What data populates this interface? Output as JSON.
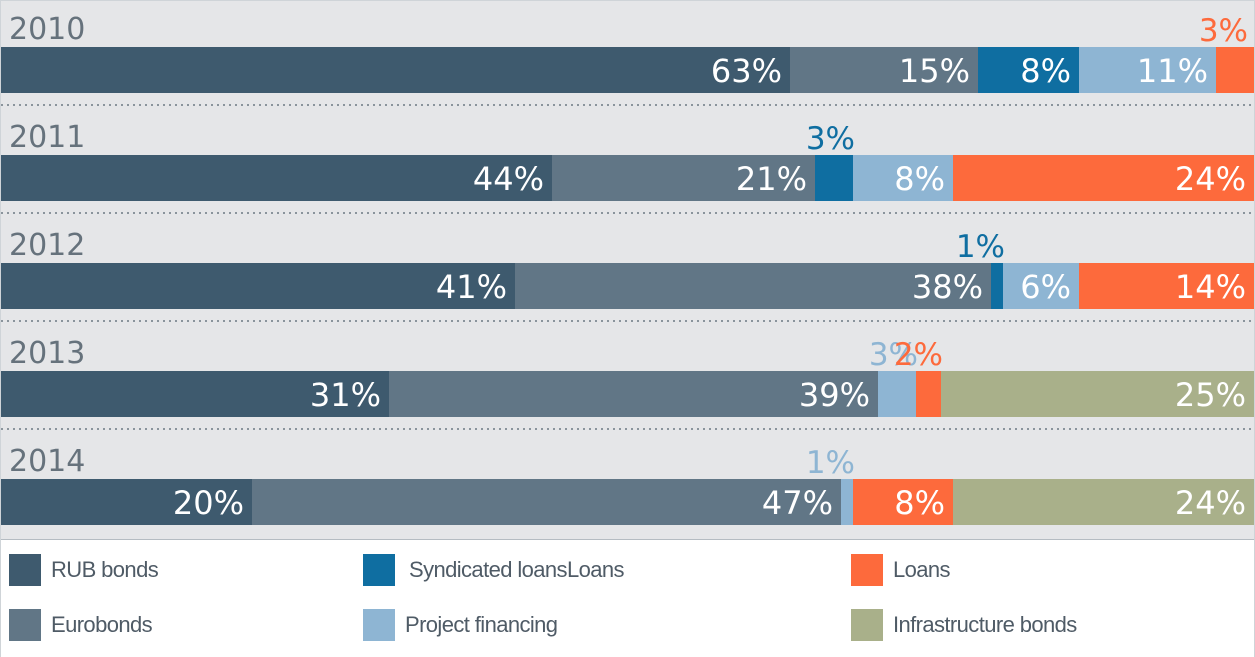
{
  "chart_data": {
    "type": "bar",
    "orientation": "horizontal",
    "stacked": true,
    "unit": "%",
    "categories": [
      "2010",
      "2011",
      "2012",
      "2013",
      "2014"
    ],
    "series": [
      {
        "name": "RUB bonds",
        "color": "#3e5a6e",
        "values": [
          63,
          44,
          41,
          31,
          20
        ]
      },
      {
        "name": "Eurobonds",
        "color": "#617686",
        "values": [
          15,
          21,
          38,
          39,
          47
        ]
      },
      {
        "name": "Syndicated loansLoans",
        "color": "#0f6ea1",
        "values": [
          8,
          3,
          1,
          0,
          0
        ]
      },
      {
        "name": "Project financing",
        "color": "#8eb5d3",
        "values": [
          11,
          8,
          6,
          3,
          1
        ]
      },
      {
        "name": "Loans",
        "color": "#fd6a3c",
        "values": [
          3,
          24,
          14,
          2,
          8
        ]
      },
      {
        "name": "Infrastructure bonds",
        "color": "#a9b08a",
        "values": [
          0,
          0,
          0,
          25,
          24
        ]
      }
    ],
    "data_labels": [
      [
        "63%",
        "15%",
        "8%",
        "11%",
        "3%",
        ""
      ],
      [
        "44%",
        "21%",
        "3%",
        "8%",
        "24%",
        ""
      ],
      [
        "41%",
        "38%",
        "1%",
        "6%",
        "14%",
        ""
      ],
      [
        "31%",
        "39%",
        "",
        "3%",
        "2%",
        "25%"
      ],
      [
        "20%",
        "47%",
        "",
        "1%",
        "8%",
        "24%"
      ]
    ],
    "grid": false,
    "legend_position": "bottom"
  },
  "legend": {
    "items": [
      {
        "label": "RUB bonds",
        "color": "#3e5a6e"
      },
      {
        "label": "Syndicated loansLoans",
        "color": "#0f6ea1"
      },
      {
        "label": "Loans",
        "color": "#fd6a3c"
      },
      {
        "label": "Eurobonds",
        "color": "#617686"
      },
      {
        "label": "Project financing",
        "color": "#8eb5d3"
      },
      {
        "label": "Infrastructure bonds",
        "color": "#a9b08a"
      }
    ]
  }
}
